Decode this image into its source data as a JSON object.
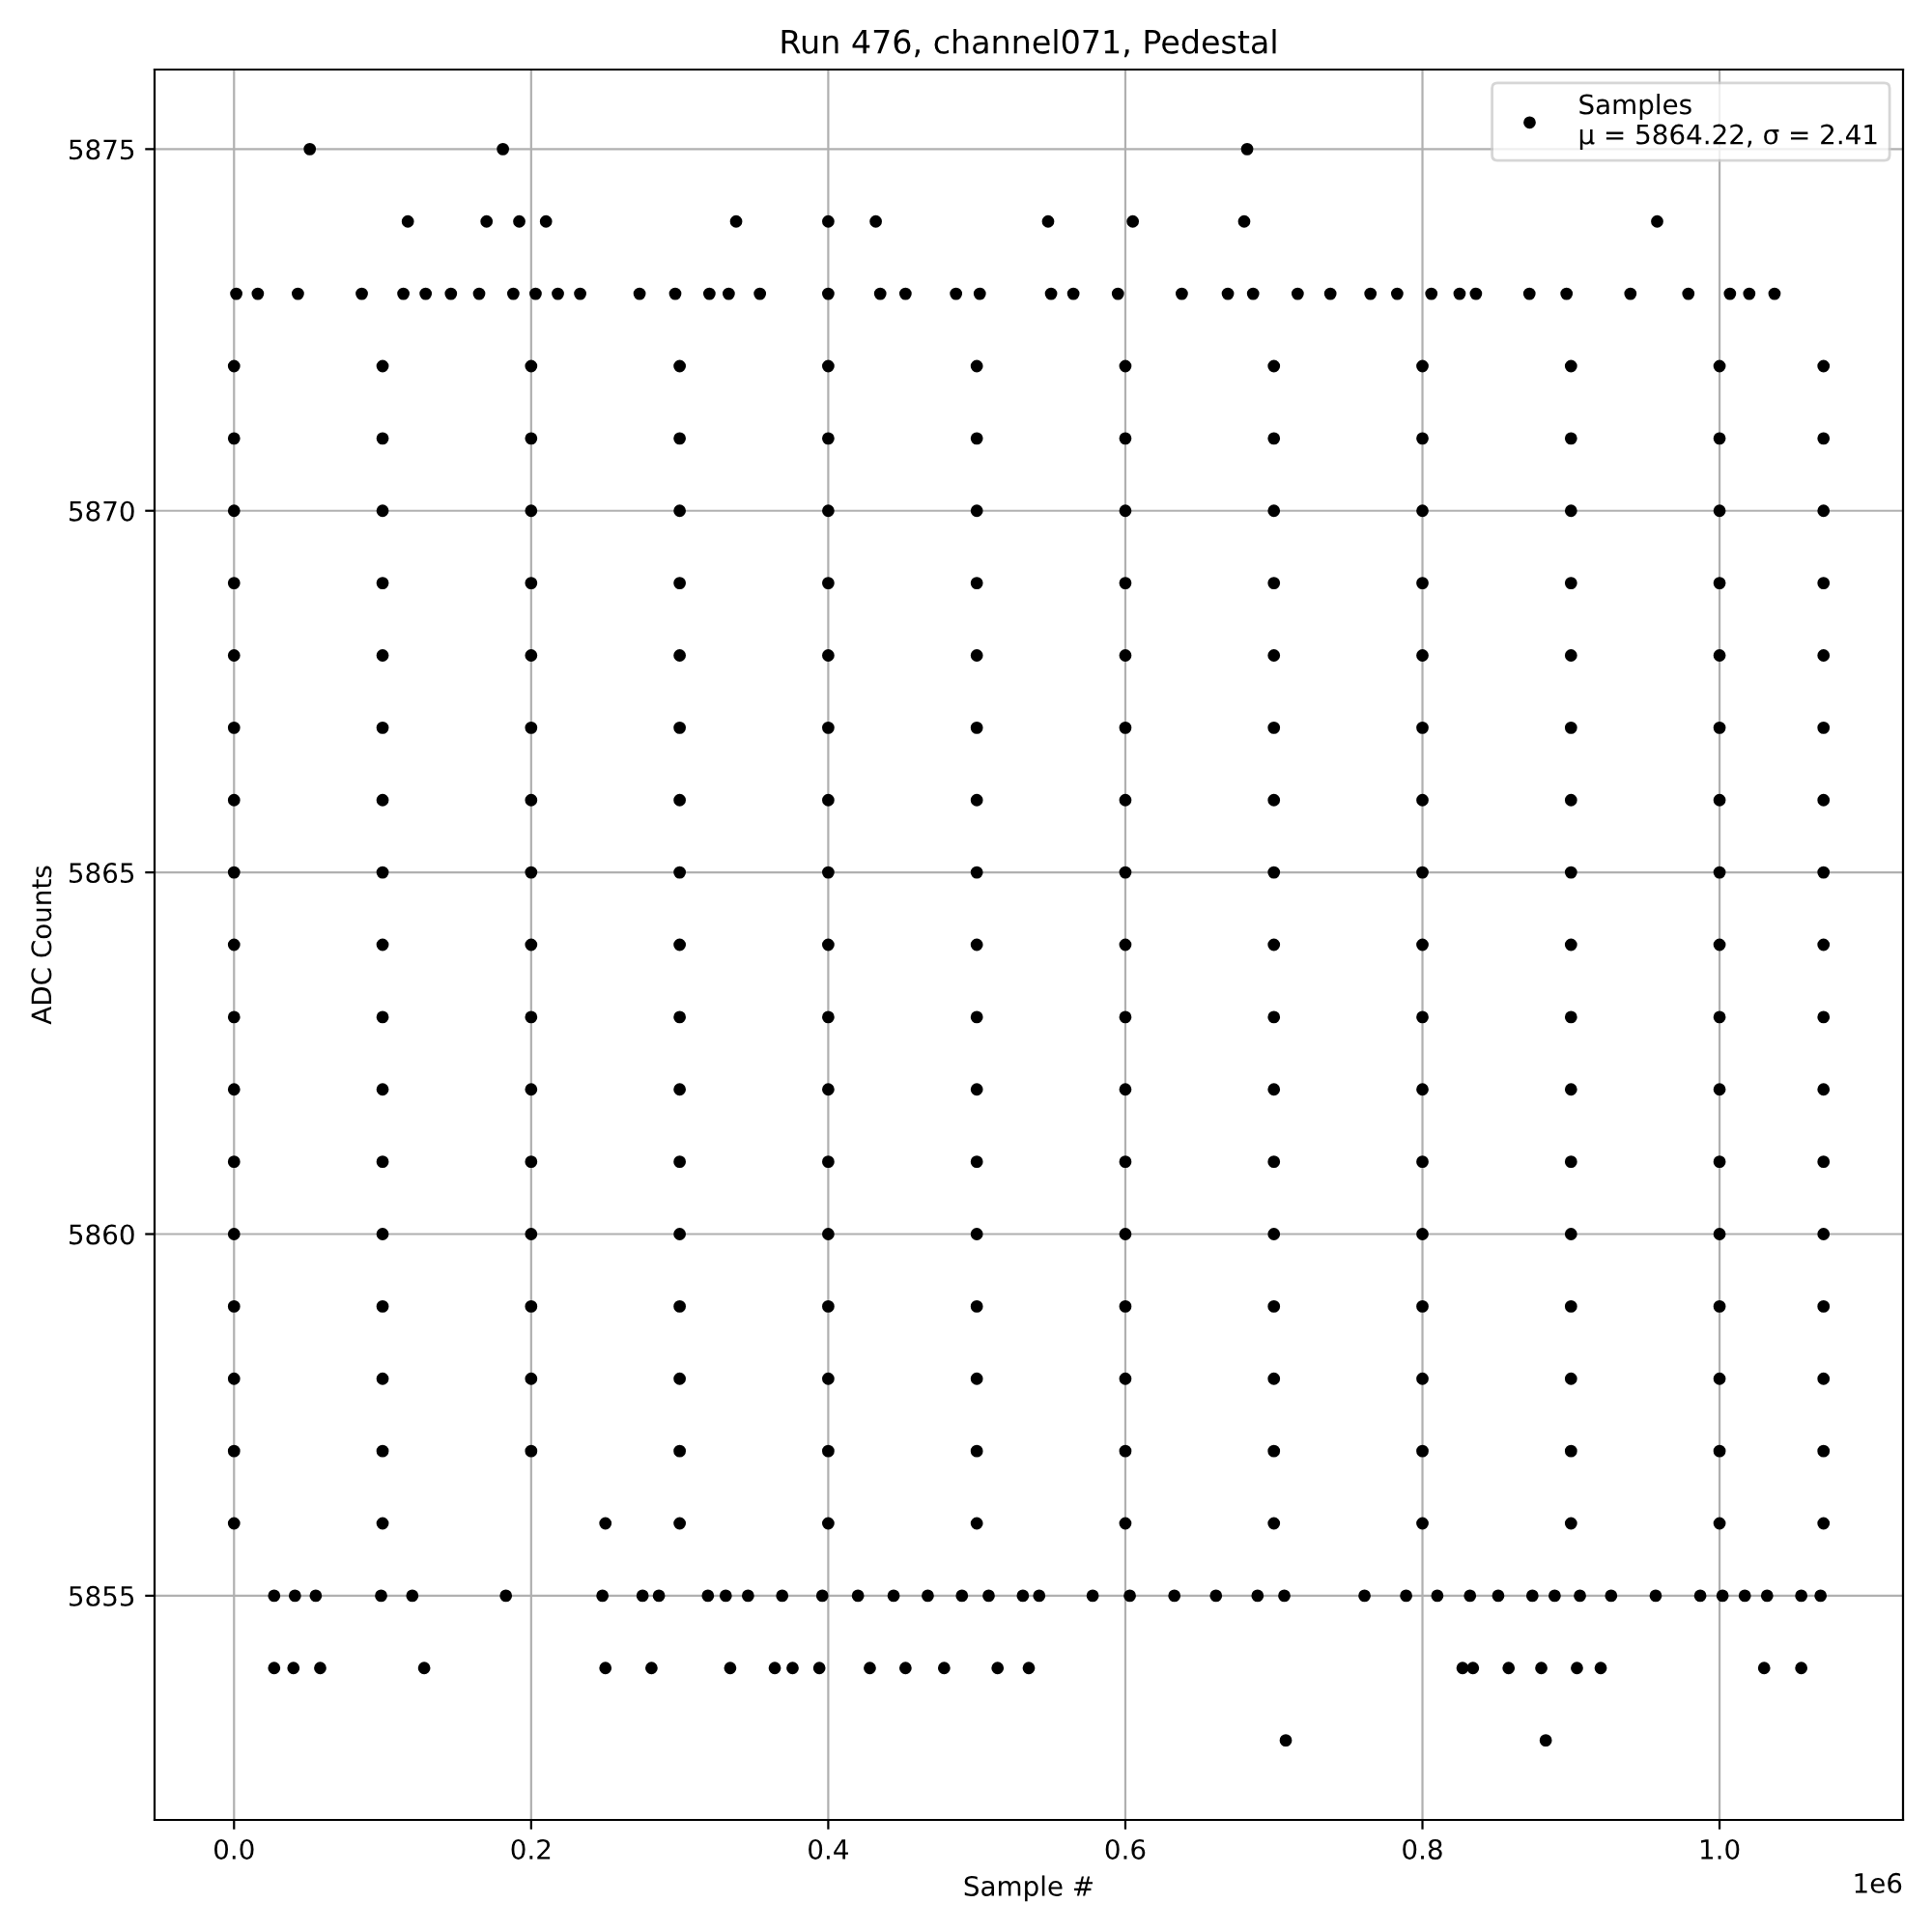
{
  "chart_data": {
    "type": "scatter",
    "title": "Run 476, channel071, Pedestal",
    "xlabel": "Sample #",
    "ylabel": "ADC Counts",
    "xlim": [
      -0.0535,
      1.1235
    ],
    "ylim": [
      5851.9,
      5876.1
    ],
    "xticks": [
      {
        "value": 0,
        "label": "0.0"
      },
      0.2,
      0.4,
      0.6,
      0.8,
      {
        "value": 1,
        "label": "1.0"
      }
    ],
    "yticks": [
      5855,
      5860,
      5865,
      5870,
      5875
    ],
    "grid": true,
    "legend": "top right",
    "marker": "circle",
    "annotations": [
      "1e6"
    ],
    "series": [
      {
        "name": "Samples\nμ = 5864.22, σ = 2.41",
        "color": "#000000",
        "x": [
          0.051,
          0.181,
          0.682,
          0.117,
          0.17,
          0.192,
          0.21,
          0.338,
          0.4,
          0.432,
          0.548,
          0.605,
          0.68,
          0.958,
          0.708,
          0.883
        ],
        "values": [
          5875,
          5875,
          5875,
          5874,
          5874,
          5874,
          5874,
          5874,
          5874,
          5874,
          5874,
          5874,
          5874,
          5874,
          5853,
          5853
        ]
      },
      {
        "color": "#000000",
        "x": [
          0.027,
          0.04,
          0.058,
          0.128,
          0.25,
          0.281,
          0.334,
          0.364,
          0.376,
          0.394,
          0.428,
          0.452,
          0.478,
          0.514,
          0.535,
          0.827,
          0.834,
          0.858,
          0.88,
          0.904,
          0.92,
          1.03,
          1.055
        ],
        "values": [
          5854,
          5854,
          5854,
          5854,
          5854,
          5854,
          5854,
          5854,
          5854,
          5854,
          5854,
          5854,
          5854,
          5854,
          5854,
          5854,
          5854,
          5854,
          5854,
          5854,
          5854,
          5854,
          5854
        ]
      },
      {
        "color": "#000000",
        "x": [
          0.027,
          0.041,
          0.055,
          0.099,
          0.12,
          0.183,
          0.248,
          0.275,
          0.286,
          0.319,
          0.331,
          0.346,
          0.369,
          0.396,
          0.42,
          0.444,
          0.467,
          0.49,
          0.508,
          0.531,
          0.542,
          0.578,
          0.603,
          0.633,
          0.661,
          0.689,
          0.707,
          0.761,
          0.789,
          0.81,
          0.832,
          0.851,
          0.874,
          0.889,
          0.906,
          0.927,
          0.957,
          0.987,
          1.002,
          1.017,
          1.032,
          1.055,
          1.068
        ],
        "values": [
          5855,
          5855,
          5855,
          5855,
          5855,
          5855,
          5855,
          5855,
          5855,
          5855,
          5855,
          5855,
          5855,
          5855,
          5855,
          5855,
          5855,
          5855,
          5855,
          5855,
          5855,
          5855,
          5855,
          5855,
          5855,
          5855,
          5855,
          5855,
          5855,
          5855,
          5855,
          5855,
          5855,
          5855,
          5855,
          5855,
          5855,
          5855,
          5855,
          5855,
          5855,
          5855,
          5855
        ]
      },
      {
        "color": "#000000",
        "x": [
          0.0015,
          0.016,
          0.043,
          0.086,
          0.114,
          0.129,
          0.146,
          0.165,
          0.188,
          0.203,
          0.218,
          0.233,
          0.273,
          0.297,
          0.32,
          0.333,
          0.354,
          0.4,
          0.435,
          0.452,
          0.486,
          0.502,
          0.55,
          0.565,
          0.595,
          0.638,
          0.669,
          0.686,
          0.716,
          0.738,
          0.765,
          0.783,
          0.806,
          0.825,
          0.836,
          0.872,
          0.897,
          0.94,
          0.979,
          1.007,
          1.02,
          1.037
        ],
        "values": [
          5873,
          5873,
          5873,
          5873,
          5873,
          5873,
          5873,
          5873,
          5873,
          5873,
          5873,
          5873,
          5873,
          5873,
          5873,
          5873,
          5873,
          5873,
          5873,
          5873,
          5873,
          5873,
          5873,
          5873,
          5873,
          5873,
          5873,
          5873,
          5873,
          5873,
          5873,
          5873,
          5873,
          5873,
          5873,
          5873,
          5873,
          5873,
          5873,
          5873,
          5873,
          5873
        ]
      },
      {
        "color": "#000000",
        "x": [
          0.0,
          0.1,
          0.25,
          0.3,
          0.4,
          0.5,
          0.6,
          0.7,
          0.8,
          0.9,
          1.0,
          1.07
        ],
        "values": [
          5856,
          5856,
          5856,
          5856,
          5856,
          5856,
          5856,
          5856,
          5856,
          5856,
          5856,
          5856
        ]
      },
      {
        "color": "#000000",
        "x": [
          0.0,
          0.1,
          0.2,
          0.3,
          0.4,
          0.5,
          0.6,
          0.7,
          0.8,
          0.9,
          1.0,
          1.07
        ],
        "values": [
          5857,
          5857,
          5857,
          5857,
          5857,
          5857,
          5857,
          5857,
          5857,
          5857,
          5857,
          5857
        ]
      },
      {
        "color": "#000000",
        "x": [
          0.0,
          0.1,
          0.2,
          0.3,
          0.4,
          0.5,
          0.6,
          0.7,
          0.8,
          0.9,
          1.0,
          1.07
        ],
        "values": [
          5858,
          5858,
          5858,
          5858,
          5858,
          5858,
          5858,
          5858,
          5858,
          5858,
          5858,
          5858
        ]
      },
      {
        "color": "#000000",
        "x": [
          0.0,
          0.1,
          0.2,
          0.3,
          0.4,
          0.5,
          0.6,
          0.7,
          0.8,
          0.9,
          1.0,
          1.07
        ],
        "values": [
          5859,
          5859,
          5859,
          5859,
          5859,
          5859,
          5859,
          5859,
          5859,
          5859,
          5859,
          5859
        ]
      },
      {
        "color": "#000000",
        "x": [
          0.0,
          0.1,
          0.2,
          0.3,
          0.4,
          0.5,
          0.6,
          0.7,
          0.8,
          0.9,
          1.0,
          1.07
        ],
        "values": [
          5860,
          5860,
          5860,
          5860,
          5860,
          5860,
          5860,
          5860,
          5860,
          5860,
          5860,
          5860
        ]
      },
      {
        "color": "#000000",
        "x": [
          0.0,
          0.1,
          0.2,
          0.3,
          0.4,
          0.5,
          0.6,
          0.7,
          0.8,
          0.9,
          1.0,
          1.07
        ],
        "values": [
          5861,
          5861,
          5861,
          5861,
          5861,
          5861,
          5861,
          5861,
          5861,
          5861,
          5861,
          5861
        ]
      },
      {
        "color": "#000000",
        "x": [
          0.0,
          0.1,
          0.2,
          0.3,
          0.4,
          0.5,
          0.6,
          0.7,
          0.8,
          0.9,
          1.0,
          1.07
        ],
        "values": [
          5862,
          5862,
          5862,
          5862,
          5862,
          5862,
          5862,
          5862,
          5862,
          5862,
          5862,
          5862
        ]
      },
      {
        "color": "#000000",
        "x": [
          0.0,
          0.1,
          0.2,
          0.3,
          0.4,
          0.5,
          0.6,
          0.7,
          0.8,
          0.9,
          1.0,
          1.07
        ],
        "values": [
          5863,
          5863,
          5863,
          5863,
          5863,
          5863,
          5863,
          5863,
          5863,
          5863,
          5863,
          5863
        ]
      },
      {
        "color": "#000000",
        "x": [
          0.0,
          0.1,
          0.2,
          0.3,
          0.4,
          0.5,
          0.6,
          0.7,
          0.8,
          0.9,
          1.0,
          1.07
        ],
        "values": [
          5864,
          5864,
          5864,
          5864,
          5864,
          5864,
          5864,
          5864,
          5864,
          5864,
          5864,
          5864
        ]
      },
      {
        "color": "#000000",
        "x": [
          0.0,
          0.1,
          0.2,
          0.3,
          0.4,
          0.5,
          0.6,
          0.7,
          0.8,
          0.9,
          1.0,
          1.07
        ],
        "values": [
          5865,
          5865,
          5865,
          5865,
          5865,
          5865,
          5865,
          5865,
          5865,
          5865,
          5865,
          5865
        ]
      },
      {
        "color": "#000000",
        "x": [
          0.0,
          0.1,
          0.2,
          0.3,
          0.4,
          0.5,
          0.6,
          0.7,
          0.8,
          0.9,
          1.0,
          1.07
        ],
        "values": [
          5866,
          5866,
          5866,
          5866,
          5866,
          5866,
          5866,
          5866,
          5866,
          5866,
          5866,
          5866
        ]
      },
      {
        "color": "#000000",
        "x": [
          0.0,
          0.1,
          0.2,
          0.3,
          0.4,
          0.5,
          0.6,
          0.7,
          0.8,
          0.9,
          1.0,
          1.07
        ],
        "values": [
          5867,
          5867,
          5867,
          5867,
          5867,
          5867,
          5867,
          5867,
          5867,
          5867,
          5867,
          5867
        ]
      },
      {
        "color": "#000000",
        "x": [
          0.0,
          0.1,
          0.2,
          0.3,
          0.4,
          0.5,
          0.6,
          0.7,
          0.8,
          0.9,
          1.0,
          1.07
        ],
        "values": [
          5868,
          5868,
          5868,
          5868,
          5868,
          5868,
          5868,
          5868,
          5868,
          5868,
          5868,
          5868
        ]
      },
      {
        "color": "#000000",
        "x": [
          0.0,
          0.1,
          0.2,
          0.3,
          0.4,
          0.5,
          0.6,
          0.7,
          0.8,
          0.9,
          1.0,
          1.07
        ],
        "values": [
          5869,
          5869,
          5869,
          5869,
          5869,
          5869,
          5869,
          5869,
          5869,
          5869,
          5869,
          5869
        ]
      },
      {
        "color": "#000000",
        "x": [
          0.0,
          0.1,
          0.2,
          0.3,
          0.4,
          0.5,
          0.6,
          0.7,
          0.8,
          0.9,
          1.0,
          1.07
        ],
        "values": [
          5870,
          5870,
          5870,
          5870,
          5870,
          5870,
          5870,
          5870,
          5870,
          5870,
          5870,
          5870
        ]
      },
      {
        "color": "#000000",
        "x": [
          0.0,
          0.1,
          0.2,
          0.3,
          0.4,
          0.5,
          0.6,
          0.7,
          0.8,
          0.9,
          1.0,
          1.07
        ],
        "values": [
          5871,
          5871,
          5871,
          5871,
          5871,
          5871,
          5871,
          5871,
          5871,
          5871,
          5871,
          5871
        ]
      },
      {
        "color": "#000000",
        "x": [
          0.0,
          0.1,
          0.2,
          0.3,
          0.4,
          0.5,
          0.6,
          0.7,
          0.8,
          0.9,
          1.0,
          1.07
        ],
        "values": [
          5872,
          5872,
          5872,
          5872,
          5872,
          5872,
          5872,
          5872,
          5872,
          5872,
          5872,
          5872
        ]
      }
    ]
  }
}
